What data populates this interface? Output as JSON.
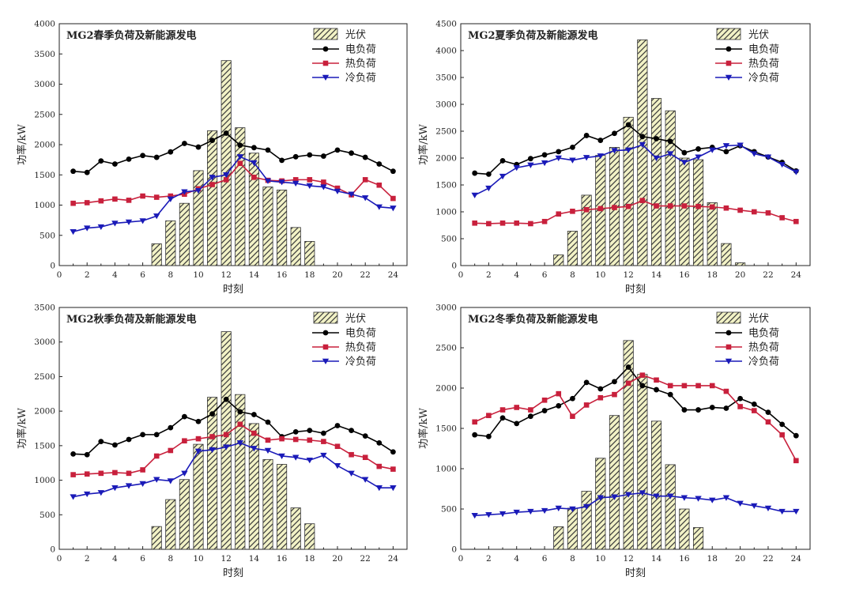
{
  "chart_data": [
    {
      "type": "bar+line",
      "title": "MG2春季负荷及新能源发电",
      "xlabel": "时刻",
      "ylabel": "功率/kW",
      "xlim": [
        0,
        25
      ],
      "ylim": [
        0,
        4000
      ],
      "yticks": [
        0,
        500,
        1000,
        1500,
        2000,
        2500,
        3000,
        3500,
        4000
      ],
      "xticks": [
        0,
        2,
        4,
        6,
        8,
        10,
        12,
        14,
        16,
        18,
        20,
        22,
        24
      ],
      "legend_position": "top-right",
      "pv": {
        "name": "光伏",
        "x": [
          7,
          8,
          9,
          10,
          11,
          12,
          13,
          14,
          15,
          16,
          17,
          18
        ],
        "values": [
          360,
          740,
          1030,
          1570,
          2230,
          3390,
          2280,
          1860,
          1300,
          1250,
          630,
          400
        ]
      },
      "series": [
        {
          "name": "电负荷",
          "color": "#000000",
          "marker": "circle",
          "values": [
            1560,
            1540,
            1730,
            1680,
            1760,
            1820,
            1790,
            1880,
            2020,
            1960,
            2070,
            2190,
            1990,
            1950,
            1910,
            1740,
            1800,
            1830,
            1810,
            1910,
            1860,
            1790,
            1680,
            1560
          ]
        },
        {
          "name": "热负荷",
          "color": "#c8203c",
          "marker": "square",
          "values": [
            1030,
            1040,
            1070,
            1100,
            1080,
            1150,
            1130,
            1150,
            1180,
            1270,
            1340,
            1420,
            1690,
            1460,
            1410,
            1400,
            1420,
            1420,
            1380,
            1280,
            1170,
            1420,
            1330,
            1110
          ]
        },
        {
          "name": "冷负荷",
          "color": "#1a1ab8",
          "marker": "triangle-down",
          "values": [
            560,
            620,
            640,
            700,
            720,
            740,
            820,
            1100,
            1220,
            1240,
            1460,
            1500,
            1800,
            1700,
            1400,
            1380,
            1360,
            1320,
            1300,
            1230,
            1180,
            1120,
            970,
            950
          ]
        }
      ]
    },
    {
      "type": "bar+line",
      "title": "MG2夏季负荷及新能源发电",
      "xlabel": "时刻",
      "ylabel": "功率/kW",
      "xlim": [
        0,
        25
      ],
      "ylim": [
        0,
        4500
      ],
      "yticks": [
        0,
        500,
        1000,
        1500,
        2000,
        2500,
        3000,
        3500,
        4000,
        4500
      ],
      "xticks": [
        0,
        2,
        4,
        6,
        8,
        10,
        12,
        14,
        16,
        18,
        20,
        22,
        24
      ],
      "legend_position": "top-right",
      "pv": {
        "name": "光伏",
        "x": [
          7,
          8,
          9,
          10,
          11,
          12,
          13,
          14,
          15,
          16,
          17,
          18,
          19,
          20
        ],
        "values": [
          200,
          640,
          1310,
          2050,
          2200,
          2760,
          4200,
          3110,
          2880,
          2000,
          1970,
          1170,
          410,
          50
        ]
      },
      "series": [
        {
          "name": "电负荷",
          "color": "#000000",
          "marker": "circle",
          "values": [
            1720,
            1700,
            1950,
            1880,
            1990,
            2060,
            2120,
            2200,
            2420,
            2330,
            2460,
            2620,
            2400,
            2360,
            2310,
            2100,
            2170,
            2200,
            2120,
            2230,
            2120,
            2020,
            1920,
            1760
          ]
        },
        {
          "name": "热负荷",
          "color": "#c8203c",
          "marker": "square",
          "values": [
            790,
            780,
            790,
            790,
            780,
            820,
            960,
            1010,
            1040,
            1060,
            1080,
            1100,
            1210,
            1110,
            1110,
            1110,
            1100,
            1090,
            1070,
            1030,
            1000,
            980,
            890,
            820
          ]
        },
        {
          "name": "冷负荷",
          "color": "#1a1ab8",
          "marker": "triangle-down",
          "values": [
            1310,
            1440,
            1660,
            1820,
            1870,
            1910,
            2000,
            1960,
            2010,
            2040,
            2140,
            2150,
            2250,
            2000,
            2080,
            1920,
            2020,
            2150,
            2230,
            2240,
            2080,
            2020,
            1880,
            1740
          ]
        }
      ]
    },
    {
      "type": "bar+line",
      "title": "MG2秋季负荷及新能源发电",
      "xlabel": "时刻",
      "ylabel": "功率/kW",
      "xlim": [
        0,
        25
      ],
      "ylim": [
        0,
        3500
      ],
      "yticks": [
        0,
        500,
        1000,
        1500,
        2000,
        2500,
        3000,
        3500
      ],
      "xticks": [
        0,
        2,
        4,
        6,
        8,
        10,
        12,
        14,
        16,
        18,
        20,
        22,
        24
      ],
      "legend_position": "top-right",
      "pv": {
        "name": "光伏",
        "x": [
          7,
          8,
          9,
          10,
          11,
          12,
          13,
          14,
          15,
          16,
          17,
          18
        ],
        "values": [
          330,
          720,
          1010,
          1520,
          2200,
          3150,
          2240,
          1820,
          1300,
          1230,
          600,
          370
        ]
      },
      "series": [
        {
          "name": "电负荷",
          "color": "#000000",
          "marker": "circle",
          "values": [
            1380,
            1370,
            1560,
            1510,
            1590,
            1660,
            1660,
            1760,
            1920,
            1850,
            1960,
            2170,
            1990,
            1950,
            1840,
            1630,
            1700,
            1720,
            1680,
            1790,
            1720,
            1640,
            1540,
            1410
          ]
        },
        {
          "name": "热负荷",
          "color": "#c8203c",
          "marker": "square",
          "values": [
            1080,
            1090,
            1100,
            1110,
            1100,
            1150,
            1350,
            1430,
            1570,
            1600,
            1630,
            1660,
            1810,
            1680,
            1580,
            1600,
            1590,
            1580,
            1560,
            1490,
            1370,
            1330,
            1200,
            1160
          ]
        },
        {
          "name": "冷负荷",
          "color": "#1a1ab8",
          "marker": "triangle-down",
          "values": [
            760,
            800,
            820,
            890,
            920,
            950,
            1010,
            990,
            1100,
            1420,
            1440,
            1480,
            1540,
            1460,
            1430,
            1350,
            1330,
            1290,
            1360,
            1210,
            1100,
            1010,
            890,
            890
          ]
        }
      ]
    },
    {
      "type": "bar+line",
      "title": "MG2冬季负荷及新能源发电",
      "xlabel": "时刻",
      "ylabel": "功率/kW",
      "xlim": [
        0,
        25
      ],
      "ylim": [
        0,
        3000
      ],
      "yticks": [
        0,
        500,
        1000,
        1500,
        2000,
        2500,
        3000
      ],
      "xticks": [
        0,
        2,
        4,
        6,
        8,
        10,
        12,
        14,
        16,
        18,
        20,
        22,
        24
      ],
      "legend_position": "top-right",
      "pv": {
        "name": "光伏",
        "x": [
          7,
          8,
          9,
          10,
          11,
          12,
          13,
          14,
          15,
          16,
          17
        ],
        "values": [
          280,
          510,
          720,
          1130,
          1660,
          2590,
          2170,
          1590,
          1050,
          500,
          270
        ]
      },
      "series": [
        {
          "name": "电负荷",
          "color": "#000000",
          "marker": "circle",
          "values": [
            1420,
            1400,
            1630,
            1560,
            1650,
            1720,
            1780,
            1870,
            2070,
            1990,
            2080,
            2260,
            2030,
            1980,
            1920,
            1730,
            1730,
            1760,
            1750,
            1870,
            1800,
            1700,
            1550,
            1410
          ]
        },
        {
          "name": "热负荷",
          "color": "#c8203c",
          "marker": "square",
          "values": [
            1580,
            1660,
            1730,
            1760,
            1730,
            1850,
            1930,
            1650,
            1790,
            1880,
            1920,
            2060,
            2160,
            2100,
            2030,
            2030,
            2030,
            2030,
            1960,
            1770,
            1720,
            1580,
            1420,
            1100
          ]
        },
        {
          "name": "冷负荷",
          "color": "#1a1ab8",
          "marker": "triangle-down",
          "values": [
            420,
            430,
            440,
            460,
            470,
            480,
            510,
            500,
            530,
            640,
            650,
            680,
            700,
            660,
            660,
            640,
            630,
            610,
            640,
            570,
            540,
            510,
            470,
            470
          ]
        }
      ]
    }
  ]
}
